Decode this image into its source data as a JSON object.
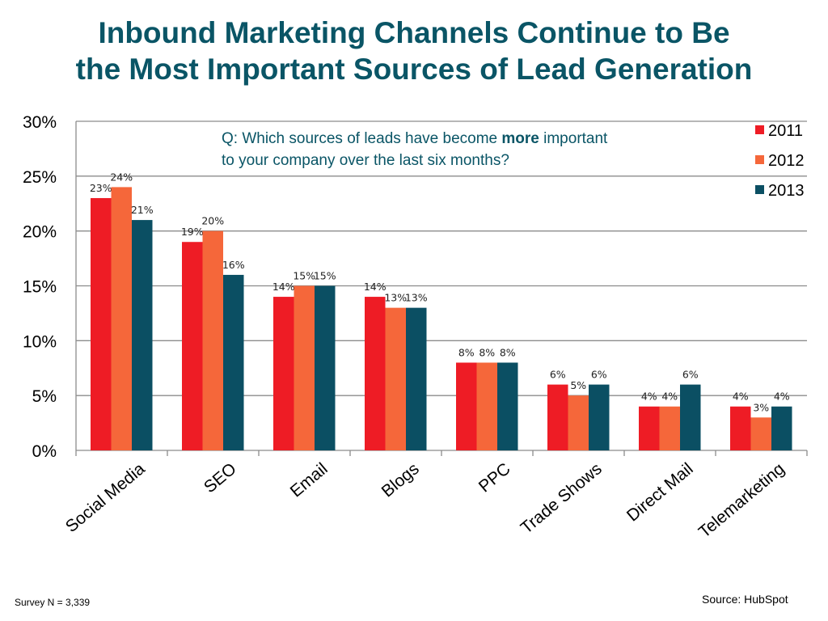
{
  "slide": {
    "title_line1": "Inbound Marketing Channels Continue to Be",
    "title_line2": "the Most Important Sources of Lead Generation",
    "question_prefix": "Q: Which sources of leads have become ",
    "question_emphasis": "more",
    "question_suffix_line1": " important",
    "question_line2": "to your company over the last six months?",
    "survey_note": "Survey N = 3,339",
    "source_note": "Source: HubSpot"
  },
  "chart_data": {
    "type": "bar",
    "title": "",
    "xlabel": "",
    "ylabel": "",
    "ylim": [
      0,
      30
    ],
    "y_ticks": [
      0,
      5,
      10,
      15,
      20,
      25,
      30
    ],
    "y_tick_format": "percent",
    "grid": true,
    "legend_position": "top-right",
    "categories": [
      "Social Media",
      "SEO",
      "Email",
      "Blogs",
      "PPC",
      "Trade Shows",
      "Direct Mail",
      "Telemarketing"
    ],
    "series": [
      {
        "name": "2011",
        "color": "#ee1c25",
        "values": [
          23,
          19,
          14,
          14,
          8,
          6,
          4,
          4
        ]
      },
      {
        "name": "2012",
        "color": "#f5673a",
        "values": [
          24,
          20,
          15,
          13,
          8,
          5,
          4,
          3
        ]
      },
      {
        "name": "2013",
        "color": "#0b4f63",
        "values": [
          21,
          16,
          15,
          13,
          8,
          6,
          6,
          4
        ]
      }
    ]
  }
}
